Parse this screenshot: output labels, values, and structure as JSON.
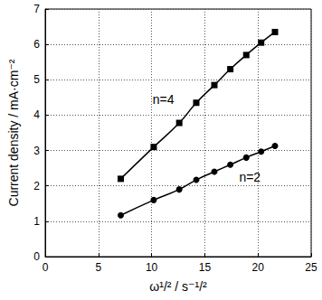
{
  "chart_data": {
    "type": "line",
    "x_label": "ω¹/² / s⁻¹/²",
    "y_label": "Current density / mA·cm⁻²",
    "xlim": [
      0,
      25
    ],
    "xticks": [
      0,
      5,
      10,
      15,
      20,
      25
    ],
    "ylim": [
      0,
      7
    ],
    "yticks": [
      0,
      1,
      2,
      3,
      4,
      5,
      6,
      7
    ],
    "grid": true,
    "series": [
      {
        "name": "n=4",
        "color": "#000000",
        "marker": "square",
        "line_style": "solid",
        "x": [
          7.1,
          10.2,
          12.6,
          14.2,
          15.9,
          17.4,
          18.9,
          20.3,
          21.6
        ],
        "values": [
          2.2,
          3.1,
          3.78,
          4.35,
          4.85,
          5.3,
          5.7,
          6.05,
          6.35
        ]
      },
      {
        "name": "n=2",
        "color": "#000000",
        "marker": "circle",
        "line_style": "solid",
        "x": [
          7.1,
          10.2,
          12.6,
          14.2,
          15.9,
          17.4,
          18.9,
          20.3,
          21.6
        ],
        "values": [
          1.17,
          1.6,
          1.9,
          2.17,
          2.4,
          2.6,
          2.8,
          2.97,
          3.13
        ]
      }
    ]
  }
}
